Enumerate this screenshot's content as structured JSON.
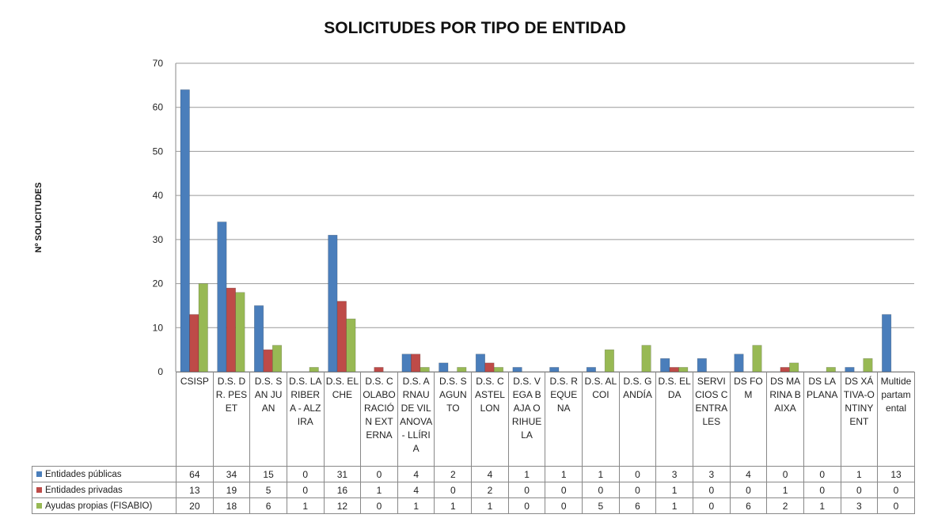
{
  "chart_data": {
    "type": "bar",
    "title": "SOLICITUDES POR TIPO DE ENTIDAD",
    "y_label": "Nº SOLICITUDES",
    "categories": [
      "CSISP",
      "D.S. DR. PESET",
      "D.S. SAN JUAN",
      "D.S. LA RIBERA - ALZIRA",
      "D.S. ELCHE",
      "D.S. COLABORACIÓN EXTERNA",
      "D.S. ARNAU DE VILANOVA - LLÍRIA",
      "D.S. SAGUNTO",
      "D.S. CASTELLON",
      "D.S. VEGA BAJA ORIHUELA",
      "D.S. REQUENA",
      "D.S. ALCOI",
      "D.S. GANDÍA",
      "D.S. ELDA",
      "SERVICIOS CENTRALES",
      "DS FOM",
      "DS MARINA BAIXA",
      "DS LA PLANA",
      "DS XÁTIVA-ONTINYENT",
      "Multidepartamental"
    ],
    "series": [
      {
        "name": "Entidades públicas",
        "color": "#4a7ebb",
        "values": [
          64,
          34,
          15,
          0,
          31,
          0,
          4,
          2,
          4,
          1,
          1,
          1,
          0,
          3,
          3,
          4,
          0,
          0,
          1,
          13
        ]
      },
      {
        "name": "Entidades privadas",
        "color": "#be4b48",
        "values": [
          13,
          19,
          5,
          0,
          16,
          1,
          4,
          0,
          2,
          0,
          0,
          0,
          0,
          1,
          0,
          0,
          1,
          0,
          0,
          0
        ]
      },
      {
        "name": "Ayudas propias (FISABIO)",
        "color": "#98b954",
        "values": [
          20,
          18,
          6,
          1,
          12,
          0,
          1,
          1,
          1,
          0,
          0,
          5,
          6,
          1,
          0,
          6,
          2,
          1,
          3,
          0
        ]
      }
    ],
    "ylim": [
      0,
      70
    ],
    "yticks": [
      0,
      10,
      20,
      30,
      40,
      50,
      60,
      70
    ],
    "grid": true
  }
}
